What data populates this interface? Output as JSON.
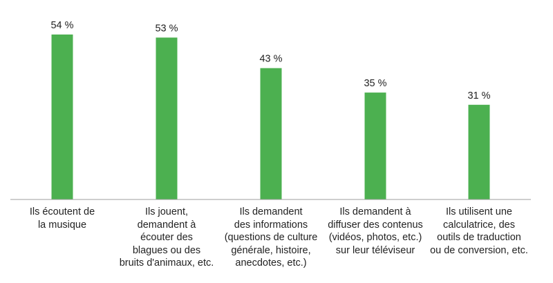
{
  "colors": {
    "bar": "#4cb050",
    "axis": "#9e9e9e",
    "text": "#222222"
  },
  "chart_data": {
    "type": "bar",
    "title": "",
    "xlabel": "",
    "ylabel": "",
    "categories": [
      "Ils écoutent de\nla musique",
      "Ils jouent,\ndemandent à\nécouter des\nblagues ou des\nbruits d'animaux, etc.",
      "Ils demandent\ndes informations\n(questions de culture\ngénérale, histoire,\nanecdotes, etc.)",
      "Ils demandent à\ndiffuser des contenus\n(vidéos, photos, etc.)\nsur leur téléviseur",
      "Ils utilisent une\ncalculatrice, des\noutils de traduction\nou de conversion, etc."
    ],
    "values": [
      54,
      53,
      43,
      35,
      31
    ],
    "value_labels": [
      "54 %",
      "53 %",
      "43 %",
      "35 %",
      "31 %"
    ],
    "unit": "%",
    "ylim": [
      0,
      54
    ],
    "grid": false,
    "legend": "none"
  }
}
